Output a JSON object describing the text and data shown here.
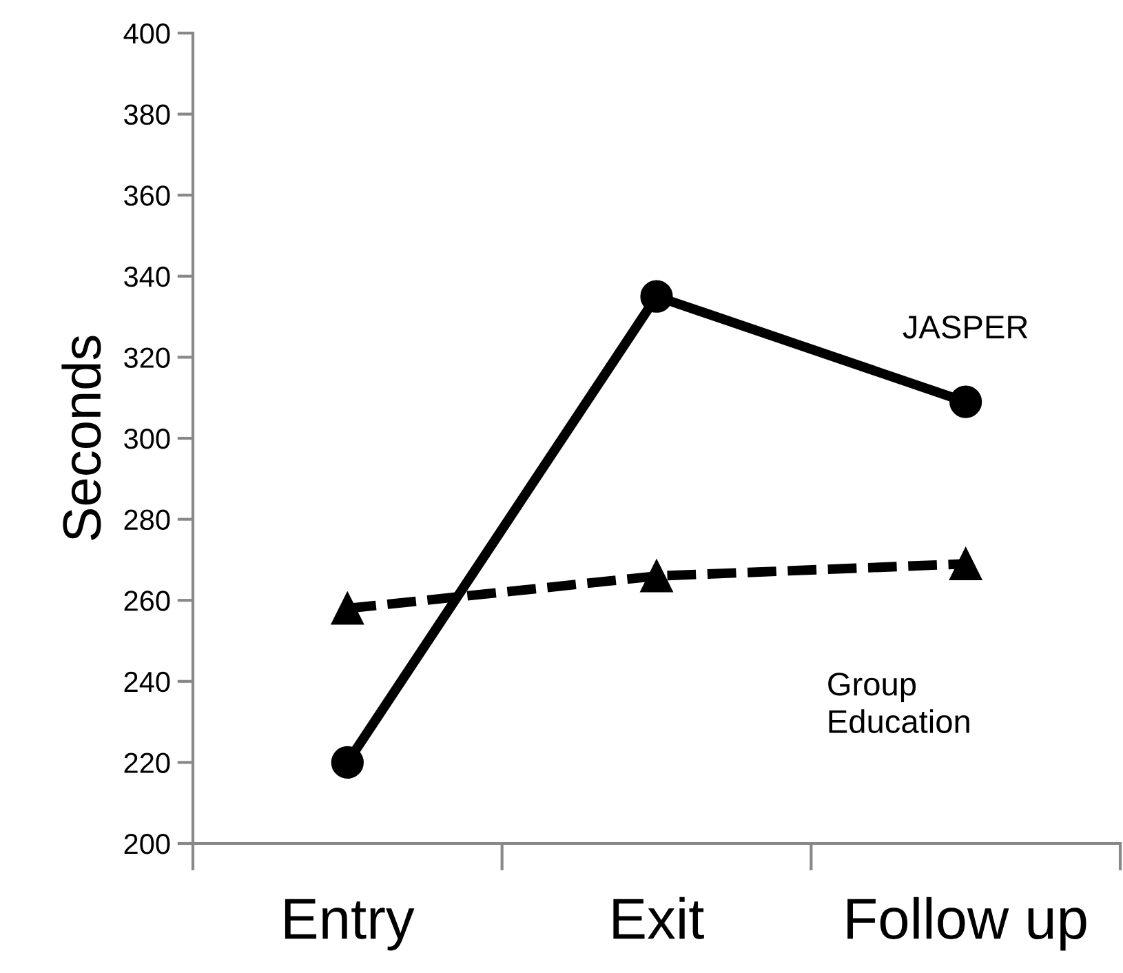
{
  "chart_data": {
    "type": "line",
    "ylabel": "Seconds",
    "categories": [
      "Entry",
      "Exit",
      "Follow up"
    ],
    "series": [
      {
        "name": "JASPER",
        "color": "#000000",
        "values": [
          220,
          335,
          309
        ],
        "marker": "circle",
        "line_style": "solid"
      },
      {
        "name": "Group Education",
        "color": "#000000",
        "values": [
          258,
          266,
          269
        ],
        "marker": "triangle",
        "line_style": "dashed"
      }
    ],
    "ylim": [
      200,
      400
    ],
    "yticks": [
      200,
      220,
      240,
      260,
      280,
      300,
      320,
      340,
      360,
      380,
      400
    ],
    "grid": false,
    "legend": false
  }
}
